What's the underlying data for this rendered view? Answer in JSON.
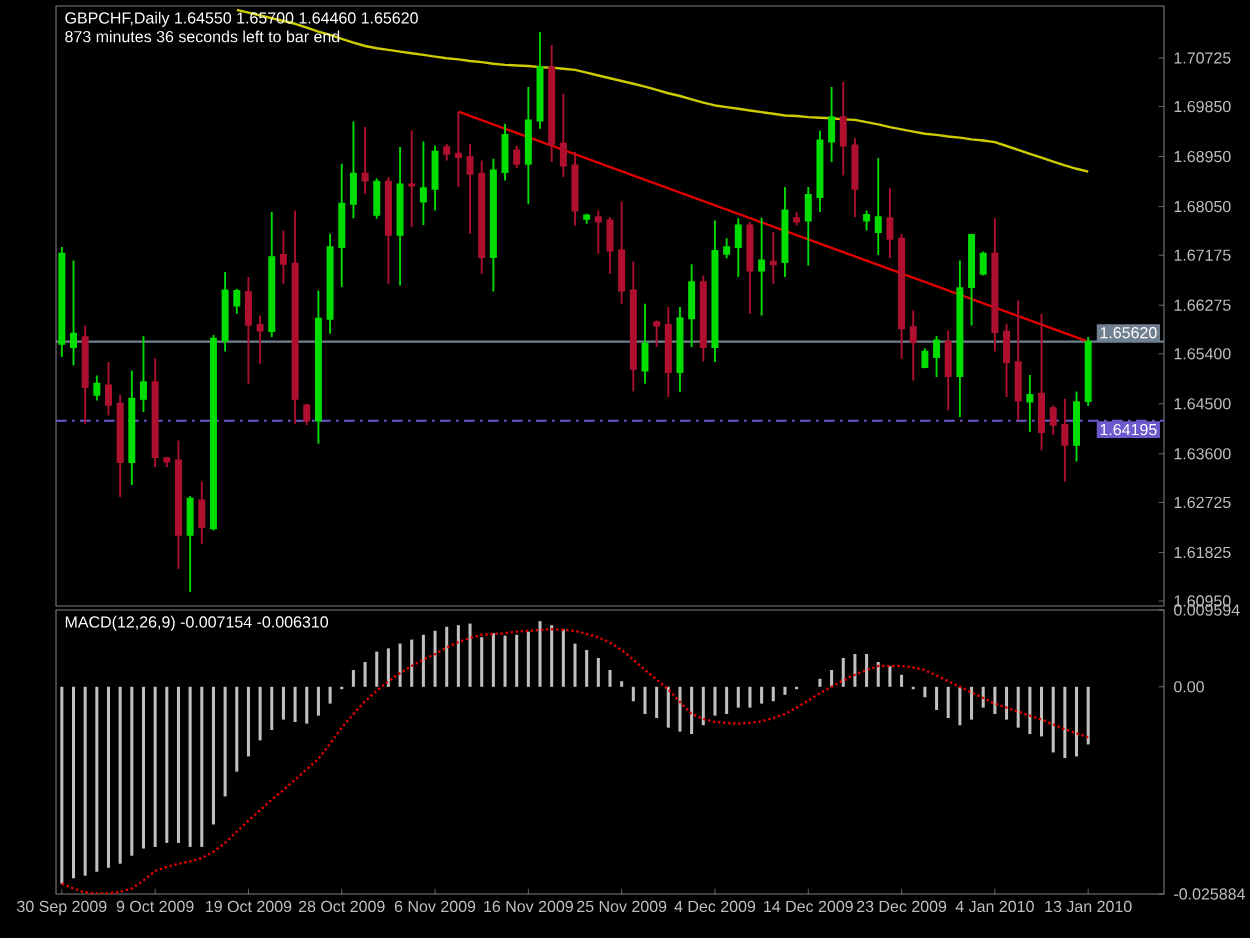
{
  "chart_data": [
    {
      "type": "candlestick",
      "title": "GBPCHF,Daily 1.64550 1.65700 1.64460 1.65620",
      "subtitle": "873 minutes 36 seconds left to bar end",
      "categories": [
        null,
        null,
        null,
        null,
        null,
        null,
        null,
        null,
        null,
        null,
        null,
        null,
        null,
        null,
        null,
        null,
        null,
        null,
        null,
        null,
        null,
        null,
        null,
        null,
        null,
        null,
        null,
        null,
        null,
        null,
        null,
        null,
        null,
        null,
        null,
        null,
        null,
        null,
        null,
        null,
        null,
        null,
        null,
        null,
        null,
        null,
        null,
        null,
        null,
        null,
        null,
        null,
        null,
        null,
        null,
        null,
        null,
        null,
        null,
        null,
        null,
        null,
        null,
        null,
        null,
        null,
        null,
        null,
        null,
        null,
        null,
        null,
        null,
        null,
        null,
        null,
        null,
        null,
        null,
        null,
        null,
        null,
        null,
        null,
        null,
        null,
        null,
        null,
        null
      ],
      "ohlc": [
        [
          1.6558,
          1.6732,
          1.6534,
          1.672
        ],
        [
          1.6552,
          1.6708,
          1.6519,
          1.6576
        ],
        [
          1.657,
          1.6591,
          1.6413,
          1.648
        ],
        [
          1.6466,
          1.6501,
          1.6456,
          1.6486
        ],
        [
          1.6483,
          1.6525,
          1.6429,
          1.6448
        ],
        [
          1.645,
          1.6466,
          1.6282,
          1.6345
        ],
        [
          1.6345,
          1.651,
          1.6304,
          1.6459
        ],
        [
          1.6459,
          1.6572,
          1.6435,
          1.6489
        ],
        [
          1.6489,
          1.6532,
          1.6336,
          1.6354
        ],
        [
          1.6352,
          1.6354,
          1.6336,
          1.6346
        ],
        [
          1.6348,
          1.6384,
          1.6153,
          1.6214
        ],
        [
          1.6214,
          1.6284,
          1.6111,
          1.6279
        ],
        [
          1.6276,
          1.631,
          1.6198,
          1.6228
        ],
        [
          1.6226,
          1.6574,
          1.6222,
          1.6567
        ],
        [
          1.6564,
          1.6687,
          1.6544,
          1.6654
        ],
        [
          1.6627,
          1.6657,
          1.6612,
          1.6653
        ],
        [
          1.6651,
          1.6678,
          1.6486,
          1.6592
        ],
        [
          1.6592,
          1.6609,
          1.6522,
          1.6582
        ],
        [
          1.6581,
          1.6795,
          1.657,
          1.6714
        ],
        [
          1.6718,
          1.6762,
          1.6666,
          1.6702
        ],
        [
          1.6702,
          1.6798,
          1.6414,
          1.6459
        ],
        [
          1.6447,
          1.645,
          1.6412,
          1.642
        ],
        [
          1.642,
          1.6654,
          1.6378,
          1.6603
        ],
        [
          1.6603,
          1.6756,
          1.6576,
          1.6732
        ],
        [
          1.6732,
          1.6882,
          1.666,
          1.681
        ],
        [
          1.681,
          1.6958,
          1.6784,
          1.6864
        ],
        [
          1.6864,
          1.6948,
          1.6828,
          1.6852
        ],
        [
          1.679,
          1.6856,
          1.6783,
          1.685
        ],
        [
          1.685,
          1.6858,
          1.6666,
          1.6754
        ],
        [
          1.6754,
          1.6912,
          1.6663,
          1.6845
        ],
        [
          1.6845,
          1.6942,
          1.6768,
          1.6843
        ],
        [
          1.6814,
          1.6922,
          1.6772,
          1.6838
        ],
        [
          1.6837,
          1.6915,
          1.6798,
          1.6904
        ],
        [
          1.6912,
          1.6918,
          1.6888,
          1.69
        ],
        [
          1.69,
          1.6976,
          1.684,
          1.6894
        ],
        [
          1.6894,
          1.6918,
          1.6756,
          1.6864
        ],
        [
          1.6864,
          1.6888,
          1.6684,
          1.6714
        ],
        [
          1.6714,
          1.6891,
          1.6652,
          1.687
        ],
        [
          1.6867,
          1.6954,
          1.6852,
          1.6934
        ],
        [
          1.6906,
          1.6915,
          1.6874,
          1.6882
        ],
        [
          1.6882,
          1.702,
          1.6809,
          1.696
        ],
        [
          1.696,
          1.7119,
          1.6945,
          1.7056
        ],
        [
          1.7056,
          1.7096,
          1.6885,
          1.6918
        ],
        [
          1.6918,
          1.7008,
          1.6858,
          1.6879
        ],
        [
          1.6879,
          1.6903,
          1.6771,
          1.6798
        ],
        [
          1.6783,
          1.6792,
          1.6774,
          1.6789
        ],
        [
          1.6786,
          1.6798,
          1.672,
          1.6778
        ],
        [
          1.678,
          1.6786,
          1.6684,
          1.6726
        ],
        [
          1.6726,
          1.6814,
          1.663,
          1.6654
        ],
        [
          1.6654,
          1.6706,
          1.6472,
          1.6513
        ],
        [
          1.651,
          1.663,
          1.6486,
          1.6558
        ],
        [
          1.6597,
          1.66,
          1.6552,
          1.6591
        ],
        [
          1.6592,
          1.6624,
          1.6462,
          1.6507
        ],
        [
          1.6507,
          1.6624,
          1.6471,
          1.6604
        ],
        [
          1.6604,
          1.6701,
          1.6552,
          1.6669
        ],
        [
          1.6669,
          1.6681,
          1.6526,
          1.6552
        ],
        [
          1.6552,
          1.678,
          1.6525,
          1.6725
        ],
        [
          1.672,
          1.6748,
          1.6712,
          1.6732
        ],
        [
          1.6732,
          1.6784,
          1.6678,
          1.6771
        ],
        [
          1.6771,
          1.6777,
          1.6612,
          1.669
        ],
        [
          1.669,
          1.6785,
          1.6609,
          1.6708
        ],
        [
          1.6706,
          1.6759,
          1.6666,
          1.6701
        ],
        [
          1.6705,
          1.684,
          1.6678,
          1.6798
        ],
        [
          1.6784,
          1.6795,
          1.6771,
          1.6778
        ],
        [
          1.678,
          1.684,
          1.6699,
          1.6826
        ],
        [
          1.6822,
          1.6942,
          1.6795,
          1.6924
        ],
        [
          1.6922,
          1.702,
          1.6885,
          1.6966
        ],
        [
          1.6966,
          1.7029,
          1.6861,
          1.6915
        ],
        [
          1.6915,
          1.6928,
          1.6786,
          1.6837
        ],
        [
          1.678,
          1.6798,
          1.6762,
          1.679
        ],
        [
          1.6759,
          1.6892,
          1.6718,
          1.6786
        ],
        [
          1.6784,
          1.6838,
          1.6712,
          1.6747
        ],
        [
          1.6747,
          1.6756,
          1.6531,
          1.6586
        ],
        [
          1.6588,
          1.6618,
          1.6492,
          1.6561
        ],
        [
          1.6516,
          1.655,
          1.6514,
          1.6544
        ],
        [
          1.6534,
          1.6572,
          1.6498,
          1.6564
        ],
        [
          1.6562,
          1.6582,
          1.6438,
          1.65
        ],
        [
          1.65,
          1.6708,
          1.6426,
          1.6658
        ],
        [
          1.666,
          1.6756,
          1.6591,
          1.6754
        ],
        [
          1.6684,
          1.6724,
          1.6681,
          1.672
        ],
        [
          1.672,
          1.6784,
          1.6544,
          1.6579
        ],
        [
          1.658,
          1.6594,
          1.6462,
          1.6525
        ],
        [
          1.6525,
          1.6636,
          1.642,
          1.6456
        ],
        [
          1.6454,
          1.6502,
          1.6399,
          1.6466
        ],
        [
          1.6468,
          1.6612,
          1.6366,
          1.6399
        ],
        [
          1.6442,
          1.6447,
          1.6394,
          1.6412
        ],
        [
          1.6412,
          1.6459,
          1.631,
          1.6376
        ],
        [
          1.6376,
          1.6472,
          1.6346,
          1.6453
        ],
        [
          1.6455,
          1.657,
          1.6446,
          1.6562
        ]
      ],
      "colors": [
        "#00dd00",
        "#00dd00",
        "#b01030",
        "#00dd00",
        "#b01030",
        "#b01030",
        "#00dd00",
        "#00dd00",
        "#b01030",
        "#b01030",
        "#b01030",
        "#00dd00",
        "#b01030",
        "#00dd00",
        "#00dd00",
        "#00dd00",
        "#b01030",
        "#b01030",
        "#00dd00",
        "#b01030",
        "#b01030",
        "#b01030",
        "#00dd00",
        "#00dd00",
        "#00dd00",
        "#00dd00",
        "#b01030",
        "#00dd00",
        "#b01030",
        "#00dd00",
        "#b01030",
        "#00dd00",
        "#00dd00",
        "#b01030",
        "#b01030",
        "#b01030",
        "#b01030",
        "#00dd00",
        "#00dd00",
        "#b01030",
        "#00dd00",
        "#00dd00",
        "#b01030",
        "#b01030",
        "#b01030",
        "#00dd00",
        "#b01030",
        "#b01030",
        "#b01030",
        "#b01030",
        "#00dd00",
        "#b01030",
        "#b01030",
        "#00dd00",
        "#00dd00",
        "#b01030",
        "#00dd00",
        "#00dd00",
        "#00dd00",
        "#b01030",
        "#00dd00",
        "#b01030",
        "#00dd00",
        "#b01030",
        "#00dd00",
        "#00dd00",
        "#00dd00",
        "#b01030",
        "#b01030",
        "#00dd00",
        "#00dd00",
        "#b01030",
        "#b01030",
        "#b01030",
        "#00dd00",
        "#00dd00",
        "#b01030",
        "#00dd00",
        "#00dd00",
        "#00dd00",
        "#b01030",
        "#b01030",
        "#b01030",
        "#00dd00",
        "#b01030",
        "#b01030",
        "#b01030",
        "#00dd00",
        "#00dd00"
      ],
      "series": [
        {
          "type": "line",
          "color": "#cccc00",
          "values": [
            null,
            null,
            null,
            null,
            null,
            null,
            null,
            null,
            null,
            null,
            null,
            null,
            null,
            null,
            null,
            1.7159,
            1.7154,
            1.7149,
            1.7144,
            1.7139,
            1.7134,
            1.7127,
            1.712,
            1.7114,
            1.7107,
            1.71,
            1.7094,
            1.709,
            1.7087,
            1.7084,
            1.7081,
            1.7078,
            1.7075,
            1.7072,
            1.707,
            1.7067,
            1.7065,
            1.7062,
            1.706,
            1.7059,
            1.7058,
            1.7056,
            1.7055,
            1.7053,
            1.7051,
            1.7046,
            1.7041,
            1.7036,
            1.7031,
            1.7026,
            1.7021,
            1.7015,
            1.7009,
            1.7004,
            1.6998,
            1.6992,
            1.6987,
            1.6984,
            1.6981,
            1.6978,
            1.6975,
            1.6972,
            1.6969,
            1.6968,
            1.6966,
            1.6965,
            1.6964,
            1.6962,
            1.6961,
            1.6957,
            1.6953,
            1.6948,
            1.6944,
            1.694,
            1.6936,
            1.6934,
            1.6931,
            1.6929,
            1.6926,
            1.6924,
            1.6921,
            1.6914,
            1.6907,
            1.69,
            1.6893,
            1.6886,
            1.6879,
            1.6873,
            1.6868
          ]
        },
        {
          "type": "line",
          "color": "#e00000",
          "values": [
            null,
            null,
            null,
            null,
            null,
            null,
            null,
            null,
            null,
            null,
            null,
            null,
            null,
            null,
            null,
            null,
            null,
            null,
            null,
            null,
            null,
            null,
            null,
            null,
            null,
            null,
            null,
            null,
            null,
            null,
            null,
            null,
            null,
            null,
            1.6976,
            null,
            null,
            null,
            null,
            null,
            null,
            null,
            null,
            null,
            null,
            null,
            null,
            null,
            null,
            null,
            null,
            null,
            null,
            null,
            null,
            null,
            null,
            null,
            null,
            null,
            null,
            null,
            null,
            null,
            null,
            null,
            null,
            null,
            null,
            null,
            null,
            null,
            null,
            null,
            null,
            null,
            null,
            null,
            null,
            null,
            null,
            null,
            null,
            null,
            null,
            null,
            null,
            null,
            1.6562
          ]
        }
      ],
      "ylim": [
        1.6086,
        1.7166
      ],
      "yticks": [
        {
          "value": 1.70725,
          "label": "1.70725"
        },
        {
          "value": 1.6985,
          "label": "1.69850"
        },
        {
          "value": 1.6895,
          "label": "1.68950"
        },
        {
          "value": 1.6805,
          "label": "1.68050"
        },
        {
          "value": 1.67175,
          "label": "1.67175"
        },
        {
          "value": 1.66275,
          "label": "1.66275"
        },
        {
          "value": 1.654,
          "label": "1.65400"
        },
        {
          "value": 1.645,
          "label": "1.64500"
        },
        {
          "value": 1.636,
          "label": "1.63600"
        },
        {
          "value": 1.62725,
          "label": "1.62725"
        },
        {
          "value": 1.61825,
          "label": "1.61825"
        },
        {
          "value": 1.6095,
          "label": "1.60950"
        }
      ],
      "ref_lines": [
        {
          "axis": "y",
          "value": 1.6562,
          "label": "1.65620",
          "color": "#708090",
          "line_style": "solid"
        },
        {
          "axis": "y",
          "value": 1.64195,
          "label": "1.64195",
          "color": "#6a5acd",
          "line_style": "dashed"
        }
      ],
      "tick_labels": "y"
    },
    {
      "type": "bar",
      "title": "MACD(12,26,9) -0.007154 -0.006310",
      "categories": [
        "30 Sep 2009",
        null,
        null,
        null,
        null,
        null,
        null,
        null,
        "9 Oct 2009",
        null,
        null,
        null,
        null,
        null,
        null,
        null,
        "19 Oct 2009",
        null,
        null,
        null,
        null,
        null,
        null,
        null,
        "28 Oct 2009",
        null,
        null,
        null,
        null,
        null,
        null,
        null,
        "6 Nov 2009",
        null,
        null,
        null,
        null,
        null,
        null,
        null,
        "16 Nov 2009",
        null,
        null,
        null,
        null,
        null,
        null,
        null,
        "25 Nov 2009",
        null,
        null,
        null,
        null,
        null,
        null,
        null,
        "4 Dec 2009",
        null,
        null,
        null,
        null,
        null,
        null,
        null,
        "14 Dec 2009",
        null,
        null,
        null,
        null,
        null,
        null,
        null,
        "23 Dec 2009",
        null,
        null,
        null,
        null,
        null,
        null,
        null,
        "4 Jan 2010",
        null,
        null,
        null,
        null,
        null,
        null,
        null,
        "13 Jan 2010"
      ],
      "series": [
        {
          "color": "#c0c0c0",
          "values": [
            -0.0246,
            -0.0239,
            -0.0236,
            -0.0231,
            -0.0226,
            -0.0221,
            -0.0211,
            -0.0202,
            -0.02,
            -0.0195,
            -0.0195,
            -0.02,
            -0.02,
            -0.0172,
            -0.0137,
            -0.0106,
            -0.0087,
            -0.0067,
            -0.0054,
            -0.0041,
            -0.0044,
            -0.0046,
            -0.0036,
            -0.0021,
            -0.0003,
            0.0021,
            0.0031,
            0.0044,
            0.0048,
            0.0054,
            0.0059,
            0.0065,
            0.007,
            0.0075,
            0.0077,
            0.0079,
            0.0062,
            0.0067,
            0.0064,
            0.0065,
            0.0069,
            0.0082,
            0.0077,
            0.0072,
            0.0054,
            0.0046,
            0.0036,
            0.0021,
            0.0007,
            -0.0018,
            -0.0034,
            -0.0039,
            -0.0051,
            -0.0056,
            -0.0059,
            -0.0048,
            -0.0036,
            -0.0034,
            -0.0026,
            -0.0026,
            -0.0021,
            -0.0018,
            -0.001,
            -0.0003,
            null,
            0.001,
            0.0021,
            0.0036,
            0.0041,
            0.0041,
            0.0031,
            0.0026,
            0.0015,
            -0.0003,
            -0.0013,
            -0.0029,
            -0.0039,
            -0.0048,
            -0.0041,
            -0.0026,
            -0.0034,
            -0.0041,
            -0.0051,
            -0.0059,
            -0.0062,
            -0.0082,
            -0.0089,
            -0.0087,
            -0.0072
          ]
        },
        {
          "type": "line",
          "color": "#e00000",
          "line_style": "dotted",
          "values": [
            -0.0246,
            -0.0252,
            -0.0257,
            -0.0258,
            -0.0258,
            -0.0256,
            -0.0252,
            -0.0242,
            -0.023,
            -0.0225,
            -0.0221,
            -0.0218,
            -0.0214,
            -0.0206,
            -0.0195,
            -0.0181,
            -0.0167,
            -0.0154,
            -0.0141,
            -0.0129,
            -0.0116,
            -0.0103,
            -0.009,
            -0.0071,
            -0.0051,
            -0.0034,
            -0.0018,
            -0.0005,
            0.0007,
            0.0017,
            0.0026,
            0.0034,
            0.0041,
            0.0049,
            0.0056,
            0.0061,
            0.0065,
            0.0066,
            0.0067,
            0.0069,
            0.007,
            0.0071,
            0.0072,
            0.0071,
            0.007,
            0.0066,
            0.0062,
            0.0055,
            0.0046,
            0.0034,
            0.0021,
            0.0009,
            -0.0003,
            -0.0019,
            -0.0034,
            -0.004,
            -0.0044,
            -0.0045,
            -0.0046,
            -0.0045,
            -0.0043,
            -0.0039,
            -0.0034,
            -0.0026,
            -0.0017,
            -0.0008,
            0.0,
            0.0008,
            0.0015,
            0.0021,
            0.0026,
            0.0026,
            0.0026,
            0.0024,
            0.0021,
            0.0014,
            0.0007,
            0.0,
            -0.0007,
            -0.0014,
            -0.0021,
            -0.0026,
            -0.0031,
            -0.0036,
            -0.0041,
            -0.0047,
            -0.0053,
            -0.0058,
            -0.0063
          ]
        }
      ],
      "ylim": [
        -0.025884,
        0.009594
      ],
      "yticks": [
        {
          "value": 0.009594,
          "label": "0.009594"
        },
        {
          "value": 0,
          "label": "0.00"
        },
        {
          "value": -0.025884,
          "label": "-0.025884"
        }
      ]
    }
  ]
}
